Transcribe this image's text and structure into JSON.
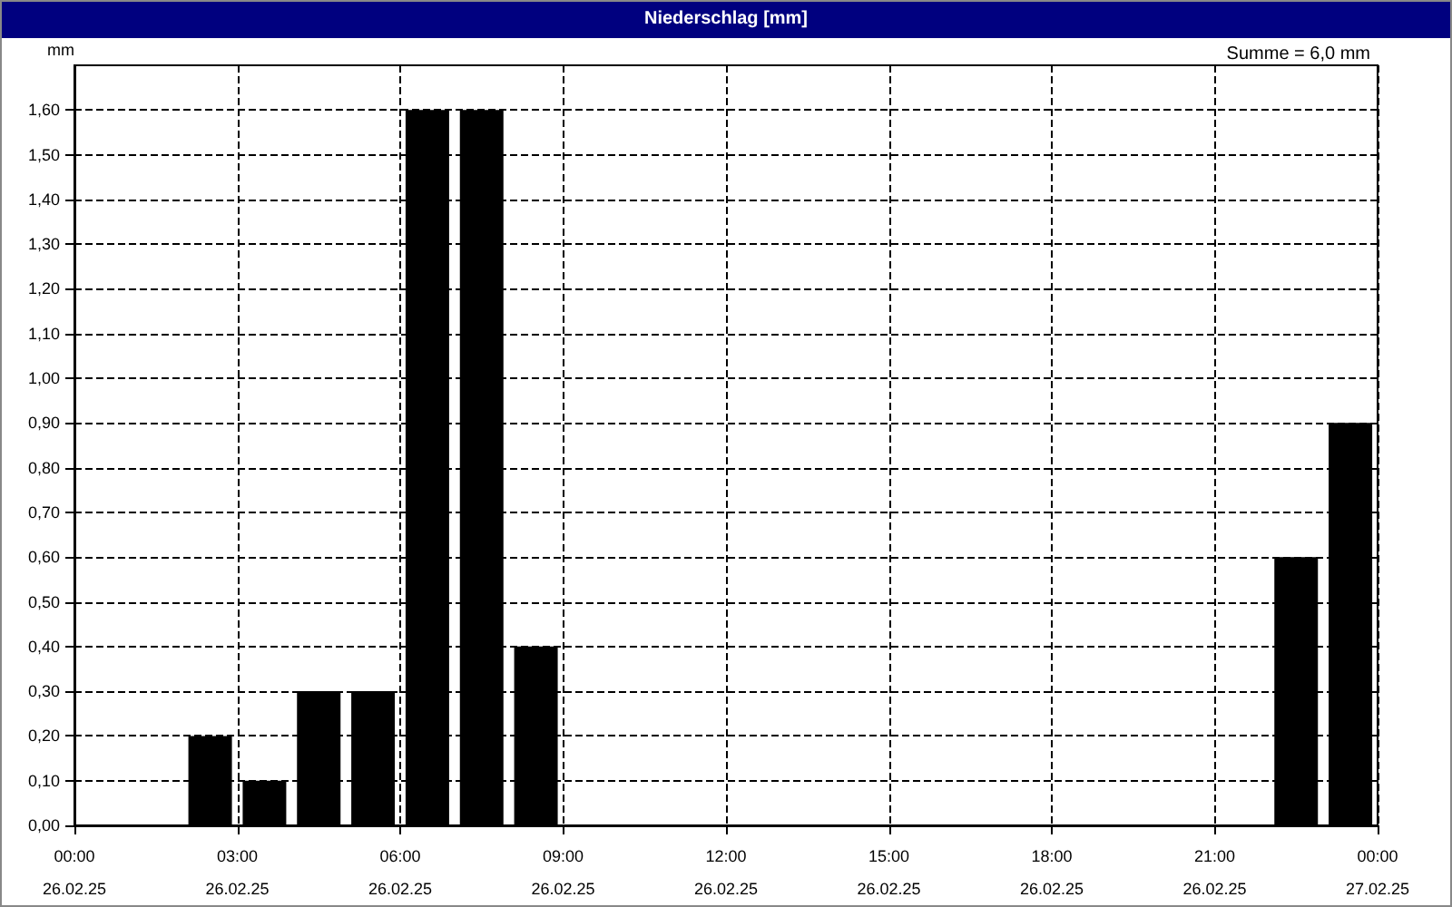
{
  "chart_data": {
    "type": "bar",
    "title": "Niederschlag [mm]",
    "ylabel": "mm",
    "annotations": [
      "Summe = 6,0 mm"
    ],
    "x": [
      "--02-26T02:30",
      "--02-26T03:30",
      "--02-26T04:30",
      "--02-26T05:30",
      "--02-26T06:30",
      "--02-26T07:30",
      "--02-26T08:30",
      "--02-26T22:30",
      "--02-26T23:30"
    ],
    "values": [
      0.2,
      0.1,
      0.3,
      0.3,
      1.6,
      1.6,
      0.4,
      0.6,
      0.9
    ],
    "color": "#000000",
    "xlim": [
      "--02-26T00:00",
      "--02-27T00:00"
    ],
    "xticks": [
      {
        "value": "--02-26T00:00",
        "label": "00:00\n26.02.25"
      },
      {
        "value": "--02-26T03:00",
        "label": "03:00\n26.02.25"
      },
      {
        "value": "--02-26T06:00",
        "label": "06:00\n26.02.25"
      },
      {
        "value": "--02-26T09:00",
        "label": "09:00\n26.02.25"
      },
      {
        "value": "--02-26T12:00",
        "label": "12:00\n26.02.25"
      },
      {
        "value": "--02-26T15:00",
        "label": "15:00\n26.02.25"
      },
      {
        "value": "--02-26T18:00",
        "label": "18:00\n26.02.25"
      },
      {
        "value": "--02-26T21:00",
        "label": "21:00\n26.02.25"
      },
      {
        "value": "--02-27T00:00",
        "label": "00:00\n27.02.25"
      }
    ],
    "ylim": [
      0,
      1.7
    ],
    "yticks": [
      {
        "value": 0,
        "label": "0,00"
      },
      {
        "value": 0.1,
        "label": "0,10"
      },
      {
        "value": 0.2,
        "label": "0,20"
      },
      {
        "value": 0.3,
        "label": "0,30"
      },
      {
        "value": 0.4,
        "label": "0,40"
      },
      {
        "value": 0.5,
        "label": "0,50"
      },
      {
        "value": 0.6,
        "label": "0,60"
      },
      {
        "value": 0.7,
        "label": "0,70"
      },
      {
        "value": 0.8,
        "label": "0,80"
      },
      {
        "value": 0.9,
        "label": "0,90"
      },
      {
        "value": 1.0,
        "label": "1,00"
      },
      {
        "value": 1.1,
        "label": "1,10"
      },
      {
        "value": 1.2,
        "label": "1,20"
      },
      {
        "value": 1.3,
        "label": "1,30"
      },
      {
        "value": 1.4,
        "label": "1,40"
      },
      {
        "value": 1.5,
        "label": "1,50"
      },
      {
        "value": 1.6,
        "label": "1,60"
      }
    ],
    "grid": true
  }
}
